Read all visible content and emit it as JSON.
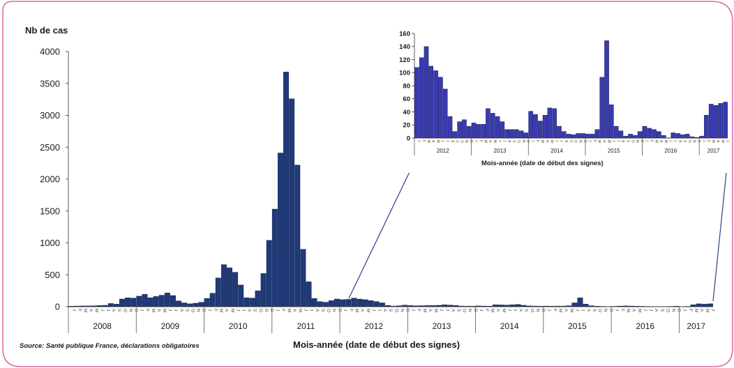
{
  "chart_data": [
    {
      "type": "bar",
      "ylabel": "Nb de cas",
      "xlabel": "Mois-année (date de début des signes)",
      "ylim": [
        0,
        4000
      ],
      "yticks": [
        0,
        500,
        1000,
        1500,
        2000,
        2500,
        3000,
        3500,
        4000
      ],
      "month_tick_labels": [
        "J",
        "F",
        "M",
        "A",
        "M",
        "J",
        "J",
        "A",
        "S",
        "O",
        "N",
        "D"
      ],
      "years": [
        "2008",
        "2009",
        "2010",
        "2011",
        "2012",
        "2013",
        "2014",
        "2015",
        "2016",
        "2017"
      ],
      "values": [
        8,
        10,
        12,
        12,
        14,
        18,
        22,
        50,
        40,
        120,
        140,
        135,
        165,
        195,
        140,
        160,
        180,
        215,
        175,
        90,
        60,
        45,
        55,
        70,
        130,
        210,
        450,
        660,
        610,
        540,
        340,
        140,
        135,
        250,
        520,
        1040,
        1530,
        2410,
        3680,
        3260,
        2220,
        900,
        390,
        130,
        80,
        70,
        95,
        120,
        110,
        115,
        135,
        120,
        110,
        95,
        80,
        60,
        20,
        10,
        15,
        25,
        18,
        15,
        16,
        18,
        20,
        22,
        30,
        25,
        20,
        10,
        8,
        8,
        12,
        10,
        8,
        30,
        28,
        25,
        30,
        35,
        22,
        12,
        10,
        8,
        10,
        8,
        10,
        10,
        15,
        60,
        140,
        40,
        15,
        8,
        5,
        3,
        5,
        10,
        12,
        10,
        8,
        6,
        4,
        3,
        2,
        3,
        5,
        8,
        2,
        5,
        30,
        45,
        40,
        45
      ]
    },
    {
      "type": "bar",
      "xlabel": "Mois-année (date de début des signes)",
      "ylim": [
        0,
        160
      ],
      "yticks": [
        0,
        20,
        40,
        60,
        80,
        100,
        120,
        140,
        160
      ],
      "month_tick_labels": [
        "J",
        "F",
        "M",
        "A",
        "M",
        "J",
        "J",
        "A",
        "S",
        "O",
        "N",
        "D"
      ],
      "years": [
        "2012",
        "2013",
        "2014",
        "2015",
        "2016",
        "2017"
      ],
      "values": [
        108,
        123,
        140,
        110,
        103,
        93,
        75,
        33,
        10,
        25,
        28,
        18,
        23,
        21,
        21,
        45,
        38,
        33,
        25,
        13,
        13,
        13,
        11,
        8,
        41,
        36,
        26,
        35,
        46,
        45,
        18,
        10,
        6,
        5,
        7,
        7,
        6,
        6,
        13,
        93,
        149,
        51,
        18,
        11,
        3,
        6,
        4,
        10,
        18,
        15,
        13,
        10,
        4,
        0,
        8,
        7,
        5,
        6,
        2,
        1,
        3,
        35,
        52,
        50,
        53,
        55
      ]
    }
  ],
  "source": "Source: Santé publique France, déclarations obligatoires",
  "colors": {
    "bar": "#1f3a78",
    "bar_inset": "#3a3ab0",
    "frame": "#e06aa8",
    "arrow": "#2b3f8f"
  }
}
